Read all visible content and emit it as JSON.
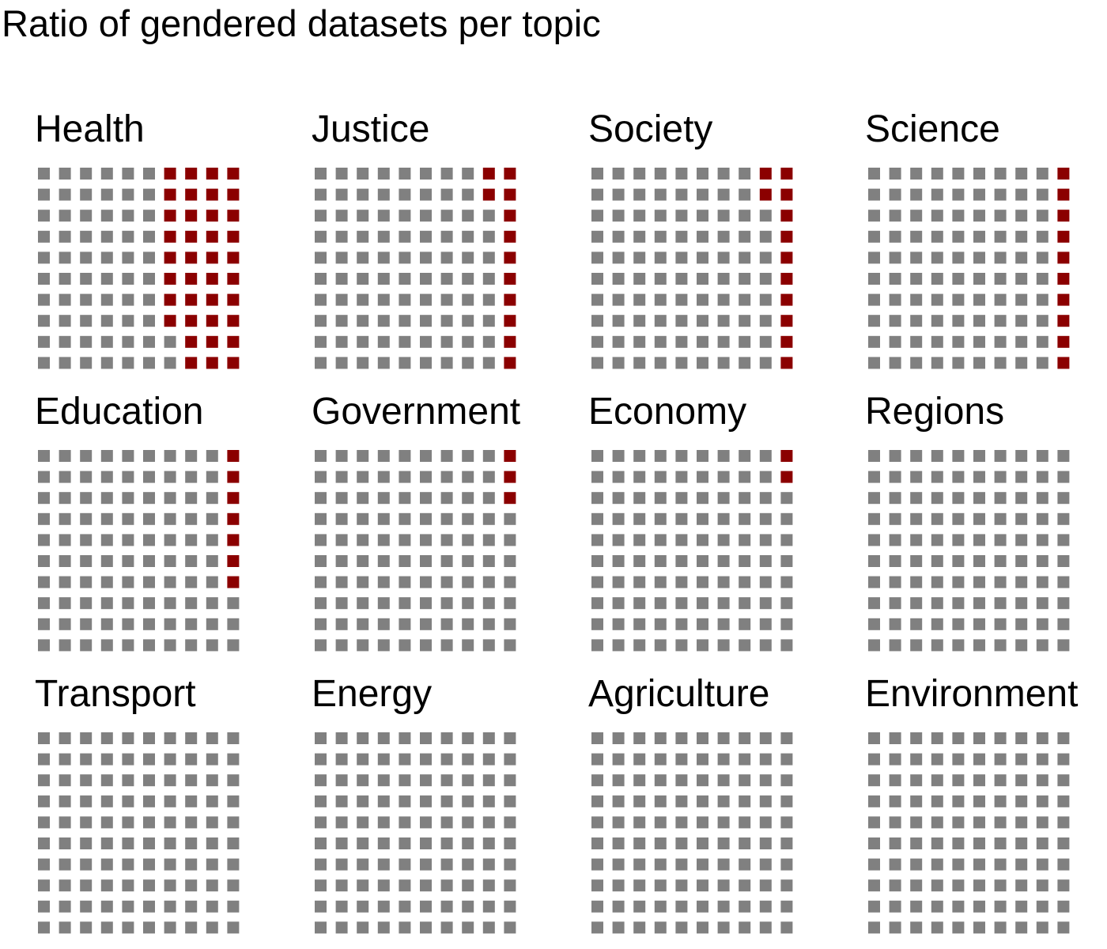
{
  "colors": {
    "gendered": "#8B0000",
    "other": "#808080"
  },
  "chart_data": {
    "type": "waffle",
    "title": "Ratio of gendered datasets per topic",
    "grid": {
      "rows": 10,
      "cols": 10,
      "total": 100
    },
    "fill_order": "column-wise from the right, top to bottom",
    "topics": [
      {
        "name": "Health",
        "gendered_percent": 38
      },
      {
        "name": "Justice",
        "gendered_percent": 12
      },
      {
        "name": "Society",
        "gendered_percent": 12
      },
      {
        "name": "Science",
        "gendered_percent": 10
      },
      {
        "name": "Education",
        "gendered_percent": 7
      },
      {
        "name": "Government",
        "gendered_percent": 3
      },
      {
        "name": "Economy",
        "gendered_percent": 2
      },
      {
        "name": "Regions",
        "gendered_percent": 0
      },
      {
        "name": "Transport",
        "gendered_percent": 0
      },
      {
        "name": "Energy",
        "gendered_percent": 0
      },
      {
        "name": "Agriculture",
        "gendered_percent": 0
      },
      {
        "name": "Environment",
        "gendered_percent": 0
      }
    ]
  }
}
